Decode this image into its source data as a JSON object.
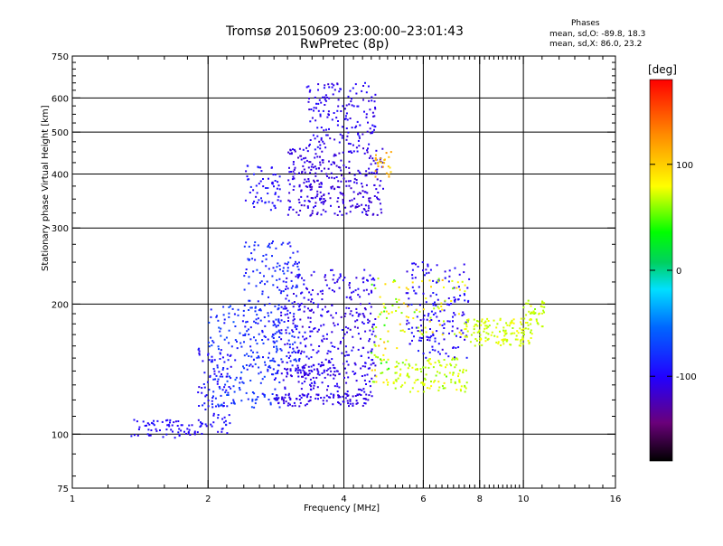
{
  "title": "Tromsø 20150609 23:00:00–23:01:43",
  "subtitle": "RwPretec (8p)",
  "phases_box": {
    "title": "Phases",
    "o_line": "mean, sd,O: -89.8, 18.3",
    "x_line": "mean, sd,X: 86.0, 23.2"
  },
  "colorbar": {
    "unit": "[deg]",
    "ticks": [
      {
        "value": 100,
        "label": "100"
      },
      {
        "value": 0,
        "label": "0"
      },
      {
        "value": -100,
        "label": "-100"
      }
    ],
    "range": [
      -180,
      180
    ],
    "colormap": "rainbow (black-purple-blue-cyan-green-yellow-orange-red)"
  },
  "chart_data": {
    "type": "scatter",
    "xlabel": "Frequency [MHz]",
    "ylabel": "Stationary phase Virtual Height [km]",
    "x_scale": "log",
    "y_scale": "log",
    "xlim": [
      1,
      16
    ],
    "ylim": [
      75,
      750
    ],
    "x_ticks": [
      {
        "value": 1,
        "label": "1"
      },
      {
        "value": 2,
        "label": "2"
      },
      {
        "value": 4,
        "label": "4"
      },
      {
        "value": 6,
        "label": "6"
      },
      {
        "value": 8,
        "label": "8"
      },
      {
        "value": 10,
        "label": "10"
      },
      {
        "value": 16,
        "label": "16"
      }
    ],
    "y_ticks": [
      {
        "value": 75,
        "label": "75"
      },
      {
        "value": 100,
        "label": "100"
      },
      {
        "value": 200,
        "label": "200"
      },
      {
        "value": 300,
        "label": "300"
      },
      {
        "value": 400,
        "label": "400"
      },
      {
        "value": 500,
        "label": "500"
      },
      {
        "value": 600,
        "label": "600"
      },
      {
        "value": 750,
        "label": "750"
      }
    ],
    "x_gridlines": [
      2,
      4,
      6,
      8,
      10
    ],
    "y_gridlines": [
      100,
      200,
      300,
      400,
      500,
      600
    ],
    "x_minor_ticks": [
      1.2,
      1.4,
      1.6,
      1.8,
      2.2,
      2.4,
      2.6,
      2.8,
      3,
      3.2,
      3.4,
      3.6,
      3.8,
      4.2,
      4.4,
      4.6,
      4.8,
      5,
      5.2,
      5.4,
      5.6,
      5.8,
      6.2,
      6.4,
      6.6,
      6.8,
      7,
      7.2,
      7.4,
      7.6,
      7.8,
      8.2,
      8.4,
      8.6,
      8.8,
      9,
      9.2,
      9.4,
      9.6,
      9.8,
      11,
      12,
      13,
      14,
      15
    ],
    "y_minor_ticks": [
      80,
      90,
      110,
      120,
      130,
      140,
      150,
      160,
      170,
      180,
      190,
      225,
      250,
      275,
      325,
      350,
      375,
      425,
      450,
      475,
      525,
      550,
      575,
      625,
      650,
      675,
      700,
      725
    ],
    "phase_color_range": [
      -180,
      180
    ],
    "clusters": [
      {
        "fmin": 1.35,
        "fmax": 1.95,
        "hmin": 98,
        "hmax": 108,
        "phase": -100,
        "spread": 12,
        "count": 70
      },
      {
        "fmin": 1.9,
        "fmax": 2.25,
        "hmin": 100,
        "hmax": 160,
        "phase": -95,
        "spread": 18,
        "count": 90
      },
      {
        "fmin": 2.0,
        "fmax": 2.9,
        "hmin": 115,
        "hmax": 200,
        "phase": -80,
        "spread": 25,
        "count": 200
      },
      {
        "fmin": 2.4,
        "fmax": 3.2,
        "hmin": 140,
        "hmax": 280,
        "phase": -85,
        "spread": 20,
        "count": 200
      },
      {
        "fmin": 2.4,
        "fmax": 2.9,
        "hmin": 330,
        "hmax": 420,
        "phase": -95,
        "spread": 20,
        "count": 60
      },
      {
        "fmin": 2.9,
        "fmax": 4.7,
        "hmin": 120,
        "hmax": 240,
        "phase": -105,
        "spread": 18,
        "count": 380
      },
      {
        "fmin": 2.8,
        "fmax": 4.6,
        "hmin": 116,
        "hmax": 124,
        "phase": -108,
        "spread": 12,
        "count": 90
      },
      {
        "fmin": 2.9,
        "fmax": 4.6,
        "hmin": 135,
        "hmax": 145,
        "phase": -108,
        "spread": 12,
        "count": 70
      },
      {
        "fmin": 3.0,
        "fmax": 4.9,
        "hmin": 320,
        "hmax": 460,
        "phase": -110,
        "spread": 16,
        "count": 320
      },
      {
        "fmin": 3.3,
        "fmax": 4.7,
        "hmin": 460,
        "hmax": 650,
        "phase": -105,
        "spread": 18,
        "count": 160
      },
      {
        "fmin": 4.7,
        "fmax": 5.1,
        "hmin": 390,
        "hmax": 450,
        "phase": 110,
        "spread": 20,
        "count": 25
      },
      {
        "fmin": 4.6,
        "fmax": 5.3,
        "hmin": 130,
        "hmax": 230,
        "phase": 70,
        "spread": 50,
        "count": 70
      },
      {
        "fmin": 5.2,
        "fmax": 7.5,
        "hmin": 125,
        "hmax": 150,
        "phase": 70,
        "spread": 20,
        "count": 120
      },
      {
        "fmin": 5.5,
        "fmax": 7.6,
        "hmin": 150,
        "hmax": 250,
        "phase": -100,
        "spread": 20,
        "count": 170
      },
      {
        "fmin": 5.3,
        "fmax": 7.5,
        "hmin": 170,
        "hmax": 230,
        "phase": 80,
        "spread": 40,
        "count": 60
      },
      {
        "fmin": 7.4,
        "fmax": 10.5,
        "hmin": 160,
        "hmax": 185,
        "phase": 72,
        "spread": 15,
        "count": 140
      },
      {
        "fmin": 10.0,
        "fmax": 11.2,
        "hmin": 175,
        "hmax": 205,
        "phase": 70,
        "spread": 15,
        "count": 40
      }
    ]
  }
}
